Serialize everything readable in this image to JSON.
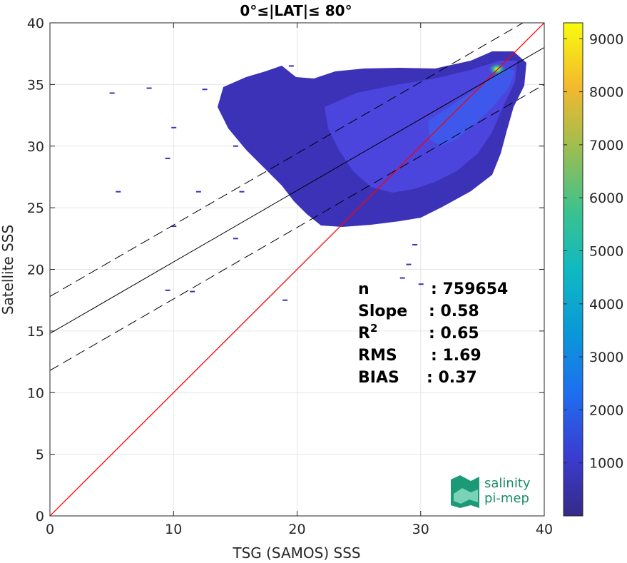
{
  "chart_data": {
    "type": "heatmap",
    "title": "0°≤|LAT|≤ 80°",
    "xlabel": "TSG (SAMOS) SSS",
    "ylabel": "Satellite SSS",
    "xlim": [
      0,
      40
    ],
    "ylim": [
      0,
      40
    ],
    "x_ticks": [
      "0",
      "10",
      "20",
      "30",
      "40"
    ],
    "y_ticks": [
      "0",
      "5",
      "10",
      "15",
      "20",
      "25",
      "30",
      "35",
      "40"
    ],
    "grid": true,
    "colorbar": {
      "range": [
        0,
        9300
      ],
      "ticks": [
        "1000",
        "2000",
        "3000",
        "4000",
        "5000",
        "6000",
        "7000",
        "8000",
        "9000"
      ],
      "colormap": "parula"
    },
    "lines": {
      "identity": {
        "slope": 1,
        "intercept": 0,
        "color": "#ff0000"
      },
      "regression": {
        "slope": 0.58,
        "intercept": 14.8,
        "color": "#000000"
      },
      "regression_bounds_offset": 3.0
    },
    "density": {
      "peak": [
        36.2,
        36.3
      ],
      "core": [
        [
          32,
          34
        ],
        [
          34,
          35.2
        ],
        [
          36,
          36.2
        ],
        [
          30,
          31
        ],
        [
          27,
          28.5
        ]
      ],
      "outliers": [
        [
          8,
          34.7
        ],
        [
          12.5,
          34.6
        ],
        [
          5,
          34.3
        ],
        [
          10,
          31.5
        ],
        [
          15,
          30
        ],
        [
          9.5,
          29
        ],
        [
          5.5,
          26.3
        ],
        [
          12,
          26.3
        ],
        [
          15.5,
          26.3
        ],
        [
          10,
          23.5
        ],
        [
          15,
          22.5
        ],
        [
          9.5,
          18.3
        ],
        [
          11.5,
          18.2
        ],
        [
          18.5,
          35.8
        ],
        [
          19.5,
          36.5
        ],
        [
          28.5,
          19.3
        ],
        [
          29,
          20.4
        ],
        [
          30,
          18.8
        ],
        [
          29.5,
          22
        ],
        [
          19,
          17.5
        ]
      ]
    },
    "stats": [
      {
        "label": "n",
        "value": ": 759654"
      },
      {
        "label": "Slope",
        "value": ": 0.58"
      },
      {
        "label": "R",
        "sup": "2",
        "value": ": 0.65"
      },
      {
        "label": "RMS",
        "value": ": 1.69"
      },
      {
        "label": "BIAS",
        "value": ": 0.37"
      }
    ]
  },
  "logo": {
    "line1": "salinity",
    "line2": "pi-mep"
  }
}
